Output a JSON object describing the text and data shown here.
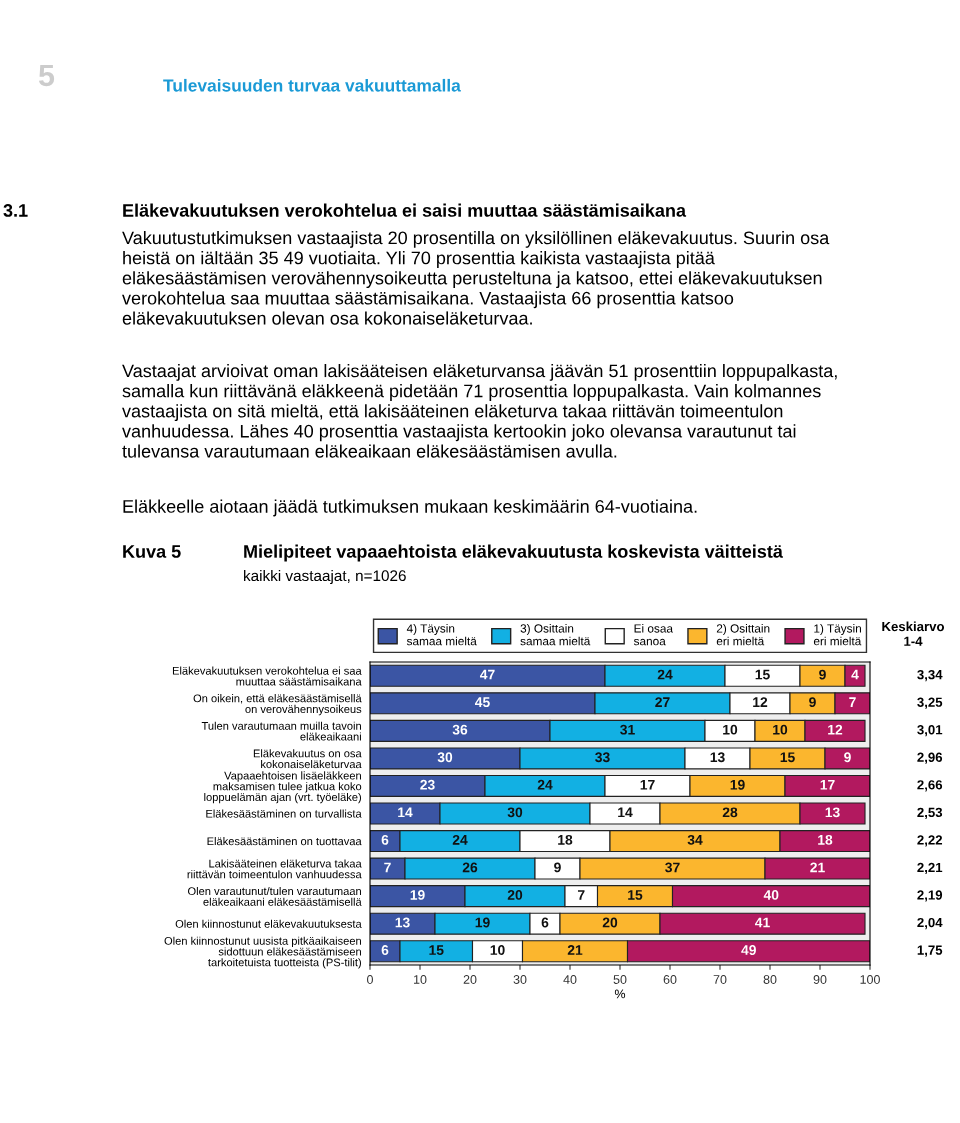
{
  "chart_data": {
    "type": "bar",
    "orientation": "horizontal",
    "stacked": true,
    "title": "Mielipiteet vapaaehtoista eläkevakuutusta koskevista väitteistä",
    "subtitle": "kaikki vastaajat, n=1026",
    "xlabel": "%",
    "categories": [
      "Eläkevakuutuksen verokohtelua ei saa\nmuuttaa säästämisaikana",
      "On oikein, että eläkesäästämisellä\non verovähennysoikeus",
      "Tulen varautumaan muilla tavoin\neläkeaikaani",
      "Eläkevakuutus on osa\nkokonaiseläketurvaa",
      "Vapaaehtoisen lisäeläkkeen\nmaksamisen tulee jatkua koko\nloppuelämän ajan (vrt. työeläke)",
      "Eläkesäästäminen on turvallista",
      "Eläkesäästäminen on tuottavaa",
      "Lakisääteinen eläketurva takaa\nriittävän toimeentulon vanhuudessa",
      "Olen varautunut/tulen varautumaan\neläkeaikaani eläkesäästämisellä",
      "Olen kiinnostunut eläkevakuutuksesta",
      "Olen kiinnostunut uusista pitkäaikaiseen\nsidottuun eläkesäästämiseen\ntarkoitetuista tuotteista (PS-tilit)"
    ],
    "series": [
      {
        "name": "4) Täysin\nsamaa mieltä",
        "color": "#3b55a4",
        "values": [
          47,
          45,
          36,
          30,
          23,
          14,
          6,
          7,
          19,
          13,
          6
        ],
        "value_labels": [
          "47",
          "45",
          "36",
          "30",
          "23",
          "14",
          "6",
          "7",
          "19",
          "13",
          "6"
        ]
      },
      {
        "name": "3) Osittain\nsamaa mieltä",
        "color": "#12b0e3",
        "values": [
          24,
          27,
          31,
          33,
          24,
          30,
          24,
          26,
          20,
          19,
          14.5
        ],
        "value_labels": [
          "24",
          "27",
          "31",
          "33",
          "24",
          "30",
          "24",
          "26",
          "20",
          "19",
          "15"
        ]
      },
      {
        "name": "Ei osaa\nsanoa",
        "color": "#ffffff",
        "values": [
          15,
          12,
          10,
          13,
          17,
          14,
          18,
          9,
          6.5,
          6,
          10
        ],
        "value_labels": [
          "15",
          "12",
          "10",
          "13",
          "17",
          "14",
          "18",
          "9",
          "7",
          "6",
          "10"
        ]
      },
      {
        "name": "2) Osittain\neri mieltä",
        "color": "#fbb62e",
        "values": [
          9,
          9,
          10,
          15,
          19,
          28,
          34,
          37,
          15,
          20,
          21
        ],
        "value_labels": [
          "9",
          "9",
          "10",
          "15",
          "19",
          "28",
          "34",
          "37",
          "15",
          "20",
          "21"
        ]
      },
      {
        "name": "1) Täysin\neri mieltä",
        "color": "#b2195f",
        "values": [
          4,
          7,
          12,
          9,
          17,
          13,
          18,
          21,
          39.5,
          41,
          48.5
        ],
        "value_labels": [
          "4",
          "7",
          "12",
          "9",
          "17",
          "13",
          "18",
          "21",
          "40",
          "41",
          "49"
        ]
      }
    ],
    "xlim": [
      0,
      100
    ],
    "xticks": [
      0,
      10,
      20,
      30,
      40,
      50,
      60,
      70,
      80,
      90,
      100
    ],
    "legend": "top",
    "grid": false,
    "annotations": [
      "5",
      "Tulevaisuuden turvaa vakuuttamalla",
      "3.1",
      "Eläkevakuutuksen verokohtelua ei saisi muuttaa säästämisaikana",
      "Vakuutustutkimuksen vastaajista 20 prosentilla on yksilöllinen eläkevakuutus. Suurin osa\nheistä on iältään 35 49 vuotiaita. Yli 70 prosenttia kaikista vastaajista pitää\neläkesäästämisen verovähennysoikeutta perusteltuna ja katsoo, ettei eläkevakuutuksen\nverokohtelua saa muuttaa säästämisaikana. Vastaajista 66 prosenttia katsoo\neläkevakuutuksen olevan osa kokonaiseläketurvaa.",
      "Vastaajat arvioivat oman lakisääteisen eläketurvansa jäävän 51 prosenttiin loppupalkasta,\nsamalla kun riittävänä eläkkeenä pidetään 71 prosenttia loppupalkasta. Vain kolmannes\nvastaajista on sitä mieltä, että lakisääteinen eläketurva takaa riittävän toimeentulon\nvanhuudessa. Lähes 40 prosenttia vastaajista kertookin joko olevansa varautunut tai\ntulevansa varautumaan eläkeaikaan eläkesäästämisen avulla.",
      "Eläkkeelle aiotaan jäädä tutkimuksen mukaan keskimäärin 64-vuotiaina.",
      "Kuva 5",
      "Keskiarvo\n1-4",
      "3,34",
      "3,25",
      "3,01",
      "2,96",
      "2,66",
      "2,53",
      "2,22",
      "2,21",
      "2,19",
      "2,04",
      "1,75"
    ]
  }
}
